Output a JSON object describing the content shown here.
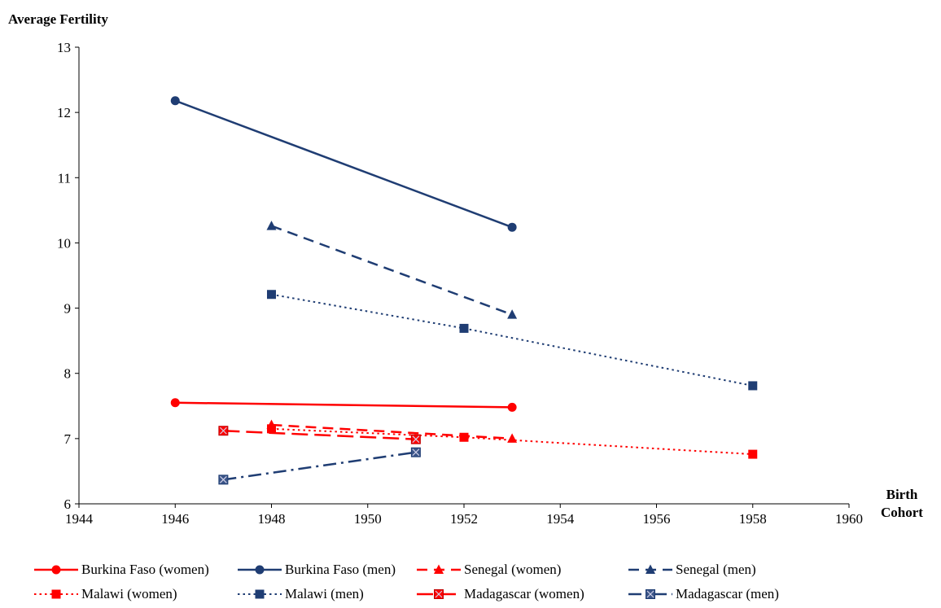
{
  "chart_data": {
    "type": "line",
    "ylabel": "Average Fertility",
    "xlabel": "Birth Cohort",
    "xlim": [
      1944,
      1960
    ],
    "ylim": [
      6,
      13
    ],
    "xticks": [
      1944,
      1946,
      1948,
      1950,
      1952,
      1954,
      1956,
      1958,
      1960
    ],
    "yticks": [
      6,
      7,
      8,
      9,
      10,
      11,
      12,
      13
    ],
    "grid": false,
    "legend_position": "bottom",
    "series": [
      {
        "name": "Burkina Faso (women)",
        "color": "#ff0000",
        "dash": "solid",
        "marker": "circle",
        "points": [
          [
            1946,
            7.55
          ],
          [
            1953,
            7.48
          ]
        ]
      },
      {
        "name": "Burkina Faso (men)",
        "color": "#1f3d73",
        "dash": "solid",
        "marker": "circle",
        "points": [
          [
            1946,
            12.18
          ],
          [
            1953,
            10.24
          ]
        ]
      },
      {
        "name": "Senegal (women)",
        "color": "#ff0000",
        "dash": "dash",
        "marker": "triangle",
        "points": [
          [
            1948,
            7.21
          ],
          [
            1953,
            7.0
          ]
        ]
      },
      {
        "name": "Senegal (men)",
        "color": "#1f3d73",
        "dash": "dash",
        "marker": "triangle",
        "points": [
          [
            1948,
            10.26
          ],
          [
            1953,
            8.9
          ]
        ]
      },
      {
        "name": "Malawi (women)",
        "color": "#ff0000",
        "dash": "dot",
        "marker": "square",
        "points": [
          [
            1948,
            7.15
          ],
          [
            1952,
            7.02
          ],
          [
            1958,
            6.76
          ]
        ]
      },
      {
        "name": "Malawi (men)",
        "color": "#1f3d73",
        "dash": "dot",
        "marker": "square",
        "points": [
          [
            1948,
            9.21
          ],
          [
            1952,
            8.69
          ],
          [
            1958,
            7.81
          ]
        ]
      },
      {
        "name": "Madagascar (women)",
        "color": "#ff0000",
        "dash": "longdash",
        "marker": "xsquare",
        "points": [
          [
            1947,
            7.12
          ],
          [
            1951,
            6.99
          ]
        ]
      },
      {
        "name": "Madagascar (men)",
        "color": "#1f3d73",
        "dash": "dashdot",
        "marker": "xsquare",
        "points": [
          [
            1947,
            6.37
          ],
          [
            1951,
            6.79
          ]
        ]
      }
    ]
  }
}
